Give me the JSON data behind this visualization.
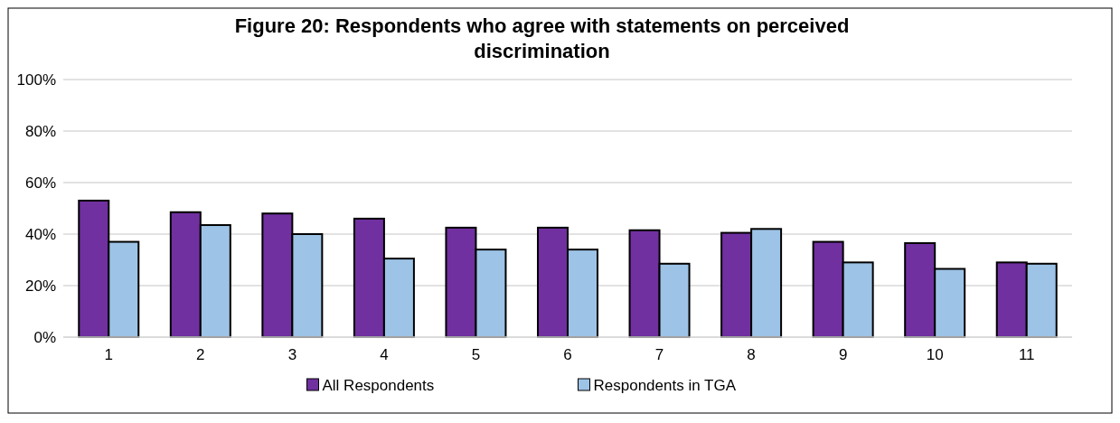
{
  "chart_data": {
    "type": "bar",
    "title": "Figure 20: Respondents who agree with statements on perceived discrimination",
    "categories": [
      "1",
      "2",
      "3",
      "4",
      "5",
      "6",
      "7",
      "8",
      "9",
      "10",
      "11"
    ],
    "series": [
      {
        "name": "All Respondents",
        "color": "#7030a0",
        "values": [
          53,
          48.5,
          48,
          46,
          42.5,
          42.5,
          41.5,
          40.5,
          37,
          36.5,
          29
        ]
      },
      {
        "name": "Respondents in TGA",
        "color": "#9dc3e6",
        "values": [
          37,
          43.5,
          40,
          30.5,
          34,
          34,
          28.5,
          42,
          29,
          26.5,
          28.5
        ]
      }
    ],
    "ylim": [
      0,
      100
    ],
    "yticks": [
      {
        "value": 0,
        "label": "0%"
      },
      {
        "value": 20,
        "label": "20%"
      },
      {
        "value": 40,
        "label": "40%"
      },
      {
        "value": 60,
        "label": "60%"
      },
      {
        "value": 80,
        "label": "80%"
      },
      {
        "value": 100,
        "label": "100%"
      }
    ],
    "grid": "y",
    "legend": "bottom"
  }
}
